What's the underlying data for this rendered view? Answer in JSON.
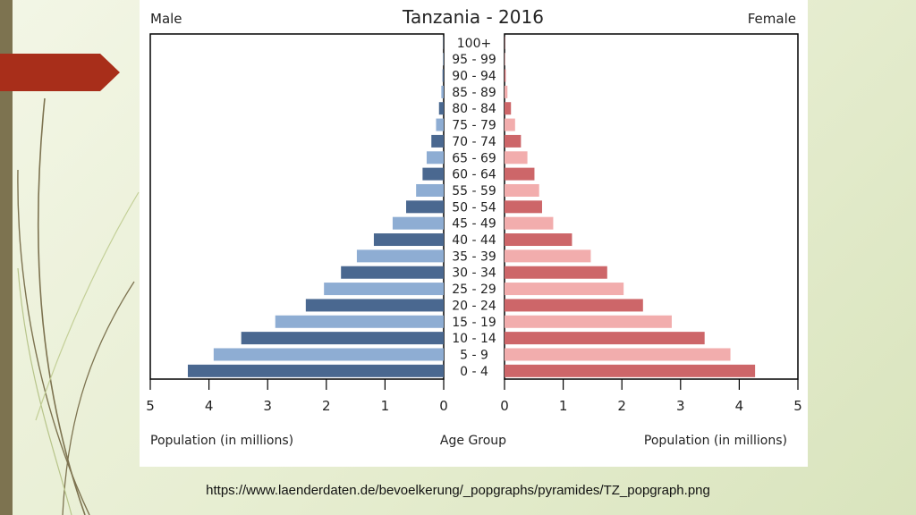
{
  "slide": {
    "source_url": "https://www.laenderdaten.de/bevoelkerung/_popgraphs/pyramides/TZ_popgraph.png"
  },
  "colors": {
    "male_dark": "#4a6890",
    "male_light": "#8eadd3",
    "female_dark": "#cd6669",
    "female_light": "#f2adad",
    "accent_arrow": "#a82e1a",
    "stripe": "#7d7350"
  },
  "chart_data": {
    "type": "bar",
    "orientation": "horizontal",
    "layout": "population-pyramid",
    "title": "Tanzania - 2016",
    "left_label": "Male",
    "right_label": "Female",
    "xlabel_left": "Population (in millions)",
    "xlabel_center": "Age Group",
    "xlabel_right": "Population (in millions)",
    "xlim": [
      0,
      5
    ],
    "x_ticks": [
      "0",
      "1",
      "2",
      "3",
      "4",
      "5"
    ],
    "grid": false,
    "categories": [
      "0 - 4",
      "5 - 9",
      "10 - 14",
      "15 - 19",
      "20 - 24",
      "25 - 29",
      "30 - 34",
      "35 - 39",
      "40 - 44",
      "45 - 49",
      "50 - 54",
      "55 - 59",
      "60 - 64",
      "65 - 69",
      "70 - 74",
      "75 - 79",
      "80 - 84",
      "85 - 89",
      "90 - 94",
      "95 - 99",
      "100+"
    ],
    "series": [
      {
        "name": "Male",
        "values": [
          4.36,
          3.92,
          3.45,
          2.87,
          2.35,
          2.04,
          1.75,
          1.48,
          1.19,
          0.87,
          0.64,
          0.47,
          0.36,
          0.29,
          0.21,
          0.13,
          0.08,
          0.04,
          0.02,
          0.01,
          0.005
        ]
      },
      {
        "name": "Female",
        "values": [
          4.27,
          3.85,
          3.41,
          2.85,
          2.36,
          2.03,
          1.75,
          1.47,
          1.15,
          0.83,
          0.64,
          0.59,
          0.51,
          0.39,
          0.28,
          0.18,
          0.11,
          0.05,
          0.02,
          0.01,
          0.005
        ]
      }
    ]
  }
}
